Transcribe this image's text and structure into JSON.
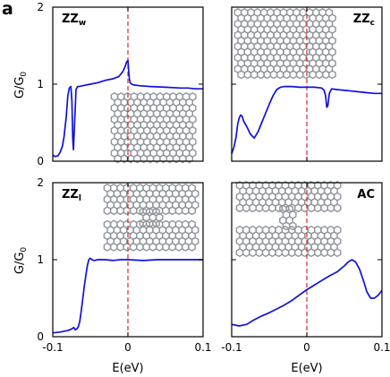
{
  "figure": {
    "letter": "a",
    "xlabel": "E(eV)",
    "ylabel_main": "G/G",
    "ylabel_sub": "0"
  },
  "colors": {
    "curve": "#1010dd",
    "dashed": "#d62728",
    "frame": "#000000",
    "atom": "#8f949b"
  },
  "chart_data": [
    {
      "type": "line",
      "title_main": "ZZ",
      "title_sub": "w",
      "xlabel": "E(eV)",
      "ylabel": "G/G0",
      "xlim": [
        -0.1,
        0.1
      ],
      "ylim": [
        0,
        2
      ],
      "reference_line_x": 0,
      "x_ticks": [
        "-0.1",
        "0",
        "0.1"
      ],
      "y_ticks": [
        "0",
        "1",
        "2"
      ],
      "has_structure_inset": true,
      "series": [
        {
          "x": [
            -0.1,
            -0.097,
            -0.093,
            -0.09,
            -0.087,
            -0.085,
            -0.082,
            -0.08,
            -0.078,
            -0.076,
            -0.0745,
            -0.0735,
            -0.0725,
            -0.071,
            -0.069,
            -0.067,
            -0.065,
            -0.06,
            -0.05,
            -0.04,
            -0.03,
            -0.02,
            -0.012,
            -0.007,
            -0.004,
            -0.002,
            0.0,
            0.001,
            0.002,
            0.003,
            0.005,
            0.008,
            0.015,
            0.03,
            0.05,
            0.07,
            0.08,
            0.09,
            0.1
          ],
          "y": [
            0.08,
            0.06,
            0.07,
            0.12,
            0.2,
            0.32,
            0.58,
            0.85,
            0.95,
            0.97,
            0.78,
            0.3,
            0.15,
            0.5,
            0.93,
            0.97,
            0.97,
            0.98,
            1.0,
            1.02,
            1.05,
            1.07,
            1.1,
            1.16,
            1.22,
            1.28,
            1.31,
            1.18,
            1.06,
            1.02,
            1.0,
            0.99,
            0.98,
            0.97,
            0.96,
            0.95,
            0.95,
            0.94,
            0.94
          ]
        }
      ]
    },
    {
      "type": "line",
      "title_main": "ZZ",
      "title_sub": "c",
      "xlabel": "E(eV)",
      "ylabel": "G/G0",
      "xlim": [
        -0.1,
        0.1
      ],
      "ylim": [
        0,
        2
      ],
      "reference_line_x": 0,
      "x_ticks": [
        "-0.1",
        "0",
        "0.1"
      ],
      "y_ticks": [
        "0",
        "1",
        "2"
      ],
      "has_structure_inset": true,
      "series": [
        {
          "x": [
            -0.1,
            -0.097,
            -0.094,
            -0.092,
            -0.09,
            -0.088,
            -0.086,
            -0.084,
            -0.08,
            -0.075,
            -0.07,
            -0.065,
            -0.06,
            -0.055,
            -0.05,
            -0.045,
            -0.04,
            -0.035,
            -0.03,
            -0.02,
            -0.01,
            0.0,
            0.01,
            0.02,
            0.023,
            0.025,
            0.0265,
            0.028,
            0.03,
            0.033,
            0.04,
            0.05,
            0.06,
            0.07,
            0.08,
            0.09,
            0.1
          ],
          "y": [
            0.1,
            0.18,
            0.32,
            0.48,
            0.56,
            0.6,
            0.58,
            0.52,
            0.45,
            0.35,
            0.3,
            0.38,
            0.5,
            0.62,
            0.74,
            0.85,
            0.93,
            0.96,
            0.97,
            0.97,
            0.96,
            0.96,
            0.96,
            0.95,
            0.92,
            0.85,
            0.7,
            0.72,
            0.88,
            0.94,
            0.93,
            0.92,
            0.91,
            0.9,
            0.89,
            0.88,
            0.88
          ]
        }
      ]
    },
    {
      "type": "line",
      "title_main": "ZZ",
      "title_sub": "l",
      "xlabel": "E(eV)",
      "ylabel": "G/G0",
      "xlim": [
        -0.1,
        0.1
      ],
      "ylim": [
        0,
        2
      ],
      "reference_line_x": 0,
      "x_ticks": [
        "-0.1",
        "0",
        "0.1"
      ],
      "y_ticks": [
        "0",
        "1",
        "2"
      ],
      "has_structure_inset": true,
      "series": [
        {
          "x": [
            -0.1,
            -0.09,
            -0.08,
            -0.075,
            -0.072,
            -0.07,
            -0.068,
            -0.066,
            -0.064,
            -0.062,
            -0.06,
            -0.058,
            -0.056,
            -0.054,
            -0.052,
            -0.05,
            -0.048,
            -0.045,
            -0.04,
            -0.03,
            -0.02,
            -0.01,
            0.0,
            0.02,
            0.04,
            0.06,
            0.08,
            0.1
          ],
          "y": [
            0.05,
            0.06,
            0.08,
            0.1,
            0.12,
            0.09,
            0.1,
            0.13,
            0.2,
            0.34,
            0.5,
            0.66,
            0.8,
            0.92,
            1.0,
            1.02,
            1.0,
            0.99,
            1.0,
            1.0,
            0.99,
            1.0,
            1.0,
            0.99,
            1.0,
            1.0,
            1.0,
            1.0
          ]
        }
      ]
    },
    {
      "type": "line",
      "title_main": "AC",
      "title_sub": "",
      "xlabel": "E(eV)",
      "ylabel": "G/G0",
      "xlim": [
        -0.1,
        0.1
      ],
      "ylim": [
        0,
        2
      ],
      "reference_line_x": 0,
      "x_ticks": [
        "-0.1",
        "0",
        "0.1"
      ],
      "y_ticks": [
        "0",
        "1",
        "2"
      ],
      "has_structure_inset": true,
      "series": [
        {
          "x": [
            -0.1,
            -0.09,
            -0.08,
            -0.07,
            -0.06,
            -0.05,
            -0.04,
            -0.03,
            -0.02,
            -0.01,
            0.0,
            0.01,
            0.02,
            0.03,
            0.04,
            0.05,
            0.055,
            0.06,
            0.065,
            0.07,
            0.075,
            0.08,
            0.085,
            0.09,
            0.095,
            0.1
          ],
          "y": [
            0.16,
            0.14,
            0.16,
            0.22,
            0.27,
            0.31,
            0.36,
            0.41,
            0.47,
            0.54,
            0.61,
            0.67,
            0.73,
            0.79,
            0.84,
            0.92,
            0.97,
            1.0,
            0.97,
            0.88,
            0.74,
            0.58,
            0.5,
            0.5,
            0.54,
            0.6
          ]
        }
      ]
    }
  ]
}
